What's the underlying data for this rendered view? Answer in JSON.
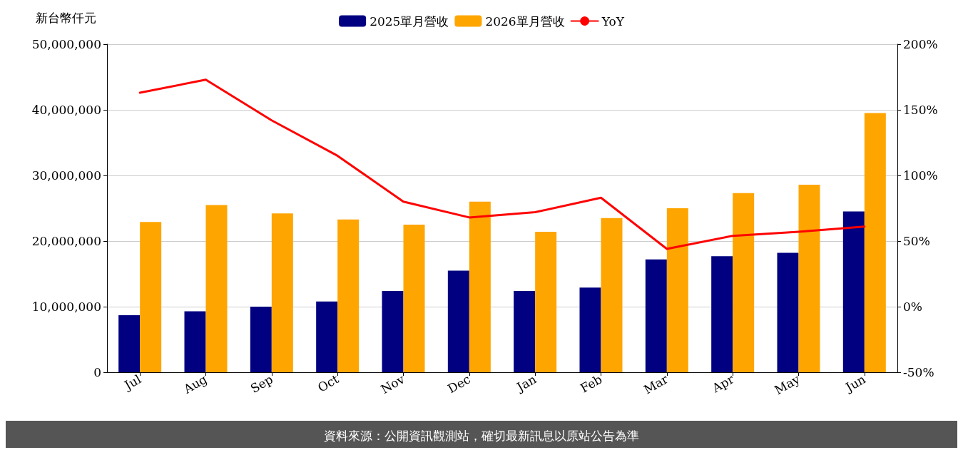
{
  "chart_data": {
    "type": "bar",
    "ylabel": "新台幣仟元",
    "categories": [
      "Jul",
      "Aug",
      "Sep",
      "Oct",
      "Nov",
      "Dec",
      "Jan",
      "Feb",
      "Mar",
      "Apr",
      "May",
      "Jun"
    ],
    "series": [
      {
        "name": "2025單月營收",
        "color": "#000080",
        "values": [
          8700000,
          9300000,
          10000000,
          10800000,
          12400000,
          15500000,
          12400000,
          12900000,
          17200000,
          17700000,
          18200000,
          24500000
        ]
      },
      {
        "name": "2026單月營收",
        "color": "#ffa500",
        "values": [
          22900000,
          25500000,
          24200000,
          23300000,
          22500000,
          26000000,
          21400000,
          23500000,
          25000000,
          27300000,
          28600000,
          39500000
        ]
      },
      {
        "name": "YoY",
        "type": "line",
        "axis": "y2",
        "color": "#ff0000",
        "values": [
          163,
          173,
          142,
          115,
          80,
          68,
          72,
          83,
          44,
          54,
          57,
          61
        ]
      }
    ],
    "ylim": [
      0,
      50000000
    ],
    "yticks": [
      {
        "value": 0,
        "label": "0"
      },
      {
        "value": 10000000,
        "label": "10,000,000"
      },
      {
        "value": 20000000,
        "label": "20,000,000"
      },
      {
        "value": 30000000,
        "label": "30,000,000"
      },
      {
        "value": 40000000,
        "label": "40,000,000"
      },
      {
        "value": 50000000,
        "label": "50,000,000"
      }
    ],
    "y2lim": [
      -50,
      200
    ],
    "y2ticks": [
      {
        "value": -50,
        "label": "-50%"
      },
      {
        "value": 0,
        "label": "0%"
      },
      {
        "value": 50,
        "label": "50%"
      },
      {
        "value": 100,
        "label": "100%"
      },
      {
        "value": 150,
        "label": "150%"
      },
      {
        "value": 200,
        "label": "200%"
      }
    ],
    "grid": "y",
    "legend": "top",
    "marker": "none",
    "line_style": "solid",
    "annotations": [
      "資料來源：公開資訊觀測站，確切最新訊息以原站公告為準"
    ]
  }
}
